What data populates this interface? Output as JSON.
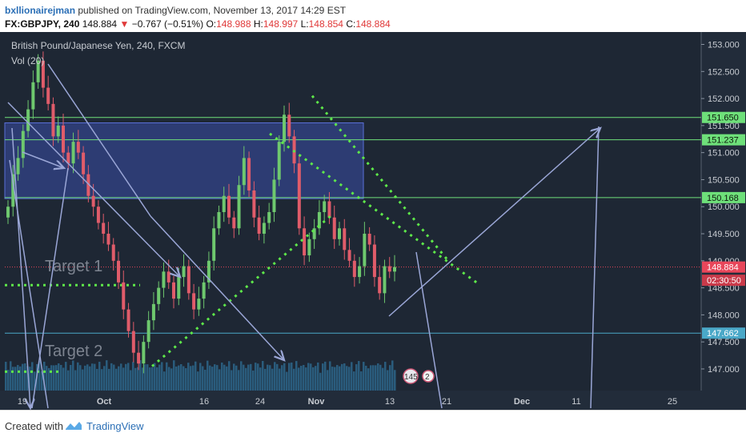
{
  "header": {
    "author": "bxllionairejman",
    "published": "published on TradingView.com, November 13, 2017 14:29 EST",
    "symbol": "FX:GBPJPY, 240",
    "last": "148.884",
    "change": "−0.767 (−0.51%)",
    "o_label": "O:",
    "o": "148.988",
    "h_label": "H:",
    "h": "148.997",
    "l_label": "L:",
    "l": "148.854",
    "c_label": "C:",
    "c": "148.884"
  },
  "chart_title": "British Pound/Japanese Yen, 240, FXCM",
  "vol_label": "Vol (20)",
  "annotations": {
    "target1": "Target 1",
    "target2": "Target 2"
  },
  "badges": {
    "ideas": "145",
    "ideas2": "2"
  },
  "footer": {
    "created": "Created with",
    "brand": "TradingView"
  },
  "colors": {
    "background": "#1e2734",
    "up": "#6ec86e",
    "down": "#e05c6a",
    "hline": "#6ee07a",
    "arrow": "#9aa6d6",
    "zone": "#3a4fa8",
    "dots": "#5ee84a",
    "current": "#e8465a",
    "countdown": "#c93a4a",
    "lower_label": "#4aa8c8"
  },
  "chart_data": {
    "type": "candlestick",
    "ylim": [
      146.6,
      153.2
    ],
    "yticks": [
      "153.000",
      "152.500",
      "152.000",
      "151.500",
      "151.000",
      "150.500",
      "150.000",
      "149.500",
      "149.000",
      "148.500",
      "148.000",
      "147.500",
      "147.000"
    ],
    "xticks": [
      "19",
      "Oct",
      "16",
      "24",
      "Nov",
      "13",
      "21",
      "Dec",
      "11",
      "25"
    ],
    "price_labels": [
      {
        "text": "151.650",
        "value": 151.65,
        "kind": "level"
      },
      {
        "text": "151.237",
        "value": 151.237,
        "kind": "level"
      },
      {
        "text": "150.168",
        "value": 150.168,
        "kind": "level"
      },
      {
        "text": "148.884",
        "value": 148.884,
        "kind": "current"
      },
      {
        "text": "02:30:50",
        "value": 148.64,
        "kind": "countdown"
      },
      {
        "text": "147.662",
        "value": 147.662,
        "kind": "lower"
      }
    ],
    "horizontal_levels": [
      151.65,
      151.237,
      150.168,
      147.662
    ],
    "current_price": 148.884,
    "zone": {
      "from_price": 150.15,
      "to_price": 151.55
    },
    "target1_price": 148.55,
    "target2_price": 146.95,
    "series": [
      {
        "name": "close",
        "values": [
          150.0,
          150.6,
          150.9,
          151.4,
          151.8,
          152.3,
          152.7,
          152.2,
          151.9,
          151.3,
          151.5,
          151.0,
          150.8,
          151.2,
          151.0,
          150.6,
          150.2,
          150.0,
          149.7,
          149.5,
          149.3,
          149.0,
          148.6,
          148.1,
          147.7,
          147.3,
          147.1,
          147.5,
          147.9,
          148.2,
          148.5,
          148.8,
          148.6,
          148.3,
          148.7,
          148.9,
          148.4,
          148.1,
          148.3,
          148.6,
          149.0,
          149.6,
          149.9,
          150.2,
          149.8,
          149.6,
          150.4,
          150.9,
          150.3,
          149.8,
          149.5,
          149.7,
          149.9,
          150.5,
          151.2,
          151.7,
          151.3,
          150.8,
          149.6,
          149.1,
          149.4,
          149.6,
          149.9,
          150.1,
          149.8,
          149.4,
          149.6,
          149.2,
          149.0,
          148.7,
          148.9,
          149.5,
          149.3,
          148.7,
          148.4,
          148.9,
          148.8,
          148.884
        ]
      }
    ]
  }
}
